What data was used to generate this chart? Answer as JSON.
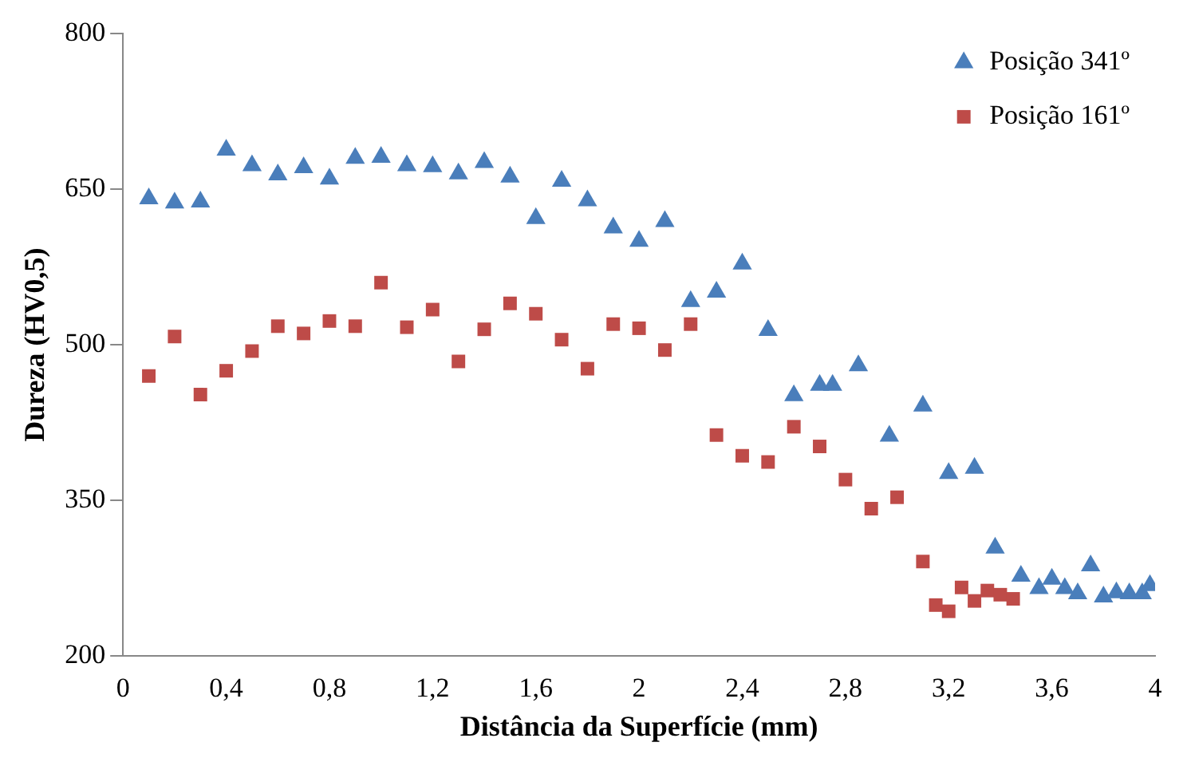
{
  "chart_data": {
    "type": "scatter",
    "xlabel": "Distância da Superfície (mm)",
    "ylabel": "Dureza (HV0,5)",
    "xlim": [
      0,
      4
    ],
    "xticks": [
      0,
      {
        "value": 0.4,
        "label": "0,4"
      },
      {
        "value": 0.8,
        "label": "0,8"
      },
      {
        "value": 1.2,
        "label": "1,2"
      },
      {
        "value": 1.6,
        "label": "1,6"
      },
      2,
      {
        "value": 2.4,
        "label": "2,4"
      },
      {
        "value": 2.8,
        "label": "2,8"
      },
      {
        "value": 3.2,
        "label": "3,2"
      },
      {
        "value": 3.6,
        "label": "3,6"
      },
      4
    ],
    "ylim": [
      200,
      800
    ],
    "yticks": [
      200,
      350,
      500,
      650,
      800
    ],
    "grid": false,
    "legend": "top right",
    "series": [
      {
        "name": "Posição 341º",
        "color": "#4a7ebb",
        "marker": "triangle",
        "x": [
          0.1,
          0.2,
          0.3,
          0.4,
          0.5,
          0.6,
          0.7,
          0.8,
          0.9,
          1.0,
          1.1,
          1.2,
          1.3,
          1.4,
          1.5,
          1.6,
          1.7,
          1.8,
          1.9,
          2.0,
          2.1,
          2.2,
          2.3,
          2.4,
          2.5,
          2.6,
          2.7,
          2.75,
          2.85,
          2.97,
          3.1,
          3.2,
          3.3,
          3.38,
          3.48,
          3.55,
          3.6,
          3.65,
          3.7,
          3.75,
          3.8,
          3.85,
          3.9,
          3.95,
          3.98
        ],
        "values": [
          641,
          637,
          638,
          688,
          673,
          664,
          671,
          660,
          680,
          681,
          673,
          672,
          665,
          676,
          662,
          622,
          658,
          639,
          613,
          600,
          619,
          542,
          551,
          578,
          514,
          451,
          461,
          461,
          480,
          412,
          441,
          376,
          381,
          304,
          277,
          265,
          274,
          265,
          260,
          287,
          257,
          261,
          260,
          260,
          268
        ]
      },
      {
        "name": "Posição 161º",
        "color": "#be4b48",
        "marker": "square",
        "x": [
          0.1,
          0.2,
          0.3,
          0.4,
          0.5,
          0.6,
          0.7,
          0.8,
          0.9,
          1.0,
          1.1,
          1.2,
          1.3,
          1.4,
          1.5,
          1.6,
          1.7,
          1.8,
          1.9,
          2.0,
          2.1,
          2.2,
          2.3,
          2.4,
          2.5,
          2.6,
          2.7,
          2.8,
          2.9,
          3.0,
          3.1,
          3.15,
          3.2,
          3.25,
          3.3,
          3.35,
          3.4,
          3.45
        ],
        "values": [
          470,
          508,
          452,
          475,
          494,
          518,
          511,
          523,
          518,
          560,
          517,
          534,
          484,
          515,
          540,
          530,
          505,
          477,
          520,
          516,
          495,
          520,
          413,
          393,
          387,
          421,
          402,
          370,
          342,
          353,
          291,
          249,
          243,
          266,
          253,
          263,
          259,
          255
        ]
      }
    ]
  }
}
